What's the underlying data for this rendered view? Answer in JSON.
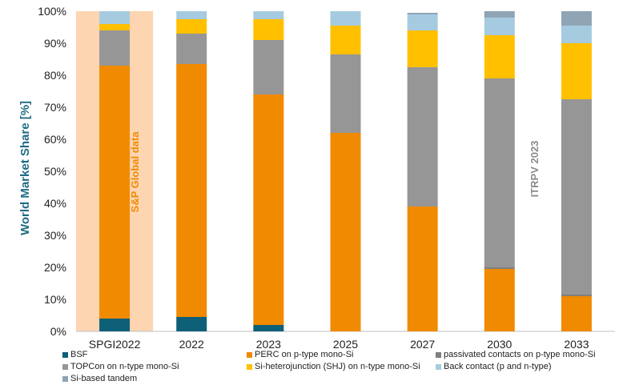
{
  "chart_data": {
    "type": "bar",
    "stacked": true,
    "ylabel": "World Market Share [%]",
    "ylim": [
      0,
      100
    ],
    "yticks": [
      "0%",
      "10%",
      "20%",
      "30%",
      "40%",
      "50%",
      "60%",
      "70%",
      "80%",
      "90%",
      "100%"
    ],
    "categories": [
      "SPGI2022",
      "2022",
      "2023",
      "2025",
      "2027",
      "2030",
      "2033"
    ],
    "grid": false,
    "legend_position": "bottom",
    "series": [
      {
        "name": "BSF",
        "color": "#0e5f78",
        "values": [
          4,
          4.5,
          2,
          0,
          0,
          0,
          0
        ]
      },
      {
        "name": "PERC on p-type mono-Si",
        "color": "#f08a00",
        "values": [
          79,
          79,
          72,
          62,
          39,
          19.5,
          11
        ]
      },
      {
        "name": "passivated contacts on p-type mono-Si",
        "color": "#7f7f7f",
        "values": [
          0,
          0,
          0,
          0,
          0,
          0.5,
          0.5
        ]
      },
      {
        "name": "TOPCon on n-type mono-Si",
        "color": "#969696",
        "values": [
          11,
          9.5,
          17,
          24.5,
          43.5,
          59,
          61
        ]
      },
      {
        "name": "Si-heterojunction (SHJ) on n-type mono-Si",
        "color": "#ffc000",
        "values": [
          2,
          4.5,
          6.5,
          9,
          11.5,
          13.5,
          17.5
        ]
      },
      {
        "name": "Back contact (p and n-type)",
        "color": "#a6cbe0",
        "values": [
          4,
          2.5,
          2.5,
          4.5,
          5,
          5.5,
          5.5
        ]
      },
      {
        "name": "Si-based tandem",
        "color": "#8fa4b4",
        "values": [
          0,
          0,
          0,
          0,
          0.5,
          2,
          4.5
        ]
      }
    ],
    "annotations": [
      {
        "text": "S&P Global data",
        "color": "#f08a00",
        "region_categories": [
          "SPGI2022"
        ]
      },
      {
        "text": "ITRPV 2023",
        "color": "#8c8c8c",
        "region_categories": [
          "2030",
          "2033"
        ]
      }
    ]
  },
  "colors": {
    "axis_label": "#1f6b85",
    "text": "#222222",
    "highlight_band": "#fdd5b1",
    "axis_line": "#bfbfbf"
  }
}
